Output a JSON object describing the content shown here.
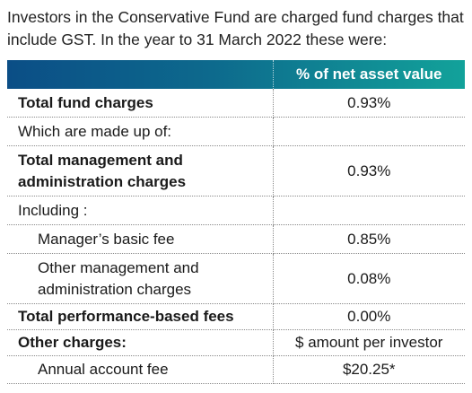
{
  "intro": {
    "text": "Investors in the Conservative Fund are charged fund charges that include GST. In the year to 31 March 2022 these were:"
  },
  "table": {
    "header": {
      "col1": "",
      "col2": "% of net asset value"
    },
    "rows": [
      {
        "label": "Total fund charges",
        "value": "0.93%",
        "bold": true,
        "indent": false
      },
      {
        "label": "Which are made up of:",
        "value": "",
        "bold": false,
        "indent": false
      },
      {
        "label": "Total management and administration charges",
        "value": "0.93%",
        "bold": true,
        "indent": false
      },
      {
        "label": "Including :",
        "value": "",
        "bold": false,
        "indent": false
      },
      {
        "label": "Manager’s basic fee",
        "value": "0.85%",
        "bold": false,
        "indent": true
      },
      {
        "label": "Other management and administration charges",
        "value": "0.08%",
        "bold": false,
        "indent": true
      },
      {
        "label": "Total performance-based fees",
        "value": "0.00%",
        "bold": true,
        "indent": false
      },
      {
        "label": "Other charges:",
        "value": "$ amount per investor",
        "bold": true,
        "indent": false
      },
      {
        "label": "Annual account fee",
        "value": "$20.25*",
        "bold": false,
        "indent": true
      }
    ]
  }
}
